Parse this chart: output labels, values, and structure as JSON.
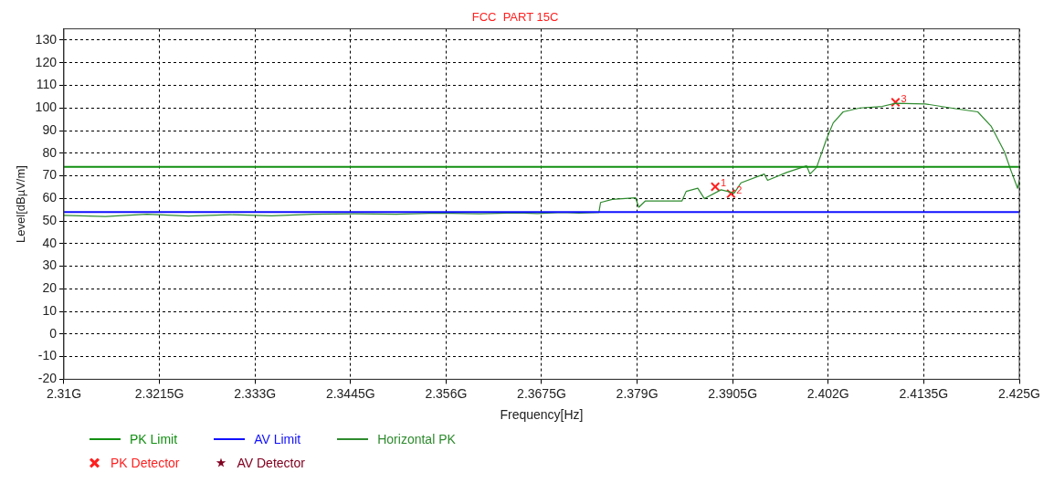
{
  "chart_data": {
    "type": "line",
    "title": "FCC  PART 15C",
    "xlabel": "Frequency[Hz]",
    "ylabel": "Level[dBµV/m]",
    "xlim": [
      2.31,
      2.425
    ],
    "xticks": [
      {
        "value": 2.31,
        "label": "2.31G"
      },
      {
        "value": 2.3215,
        "label": "2.3215G"
      },
      {
        "value": 2.333,
        "label": "2.333G"
      },
      {
        "value": 2.3445,
        "label": "2.3445G"
      },
      {
        "value": 2.356,
        "label": "2.356G"
      },
      {
        "value": 2.3675,
        "label": "2.3675G"
      },
      {
        "value": 2.379,
        "label": "2.379G"
      },
      {
        "value": 2.3905,
        "label": "2.3905G"
      },
      {
        "value": 2.402,
        "label": "2.402G"
      },
      {
        "value": 2.4135,
        "label": "2.4135G"
      },
      {
        "value": 2.425,
        "label": "2.425G"
      }
    ],
    "ylim": [
      -20,
      135
    ],
    "yticks": [
      -20,
      -10,
      0,
      10,
      20,
      30,
      40,
      50,
      60,
      70,
      80,
      90,
      100,
      110,
      120,
      130
    ],
    "grid": true,
    "legend": "bottom left",
    "line_style": "solid",
    "series": [
      {
        "name": "PK Limit",
        "color": "#129012",
        "x": [
          2.31,
          2.425
        ],
        "values": [
          74,
          74
        ]
      },
      {
        "name": "AV Limit",
        "color": "#1010ff",
        "x": [
          2.31,
          2.425
        ],
        "values": [
          54,
          54
        ]
      },
      {
        "name": "Horizontal PK",
        "color": "#2e8b2e",
        "x": [
          2.31,
          2.315,
          2.32,
          2.325,
          2.33,
          2.335,
          2.34,
          2.345,
          2.35,
          2.355,
          2.36,
          2.3645,
          2.367,
          2.37,
          2.372,
          2.3744,
          2.3746,
          2.376,
          2.3788,
          2.3792,
          2.38,
          2.3844,
          2.3849,
          2.3863,
          2.3871,
          2.3891,
          2.3907,
          2.3915,
          2.3943,
          2.3947,
          2.397,
          2.3994,
          2.3998,
          2.4006,
          2.4018,
          2.4026,
          2.4038,
          2.4058,
          2.4085,
          2.4101,
          2.4137,
          2.4173,
          2.42,
          2.4216,
          2.4232,
          2.424,
          2.4248,
          2.425
        ],
        "values": [
          52.5,
          52,
          53,
          52.2,
          52.8,
          52.3,
          53,
          53.2,
          53,
          53.5,
          53.2,
          53.6,
          53.3,
          53.8,
          53.5,
          53.8,
          58.2,
          59.6,
          60.3,
          56.1,
          58.9,
          58.9,
          63.1,
          64.5,
          59.9,
          63.8,
          62.4,
          66.9,
          70.8,
          68,
          71.5,
          74.4,
          70.8,
          73.7,
          86.3,
          93.4,
          98.3,
          100,
          100.7,
          102.1,
          101.8,
          99.7,
          98.3,
          92,
          80.7,
          72.3,
          64.5,
          68
        ]
      },
      {
        "name": "PK Detector",
        "color": "#ff2020",
        "type": "scatter",
        "marker": "cross",
        "x": [
          2.3884,
          2.3903,
          2.4101
        ],
        "values": [
          65.2,
          62.1,
          102.5
        ]
      },
      {
        "name": "AV Detector",
        "color": "#800020",
        "type": "scatter",
        "marker": "star"
      }
    ],
    "annotations": [
      {
        "text": "1",
        "x": 2.3884,
        "y": 65.2
      },
      {
        "text": "2",
        "x": 2.3903,
        "y": 62.1
      },
      {
        "text": "3",
        "x": 2.4101,
        "y": 102.5
      }
    ]
  }
}
